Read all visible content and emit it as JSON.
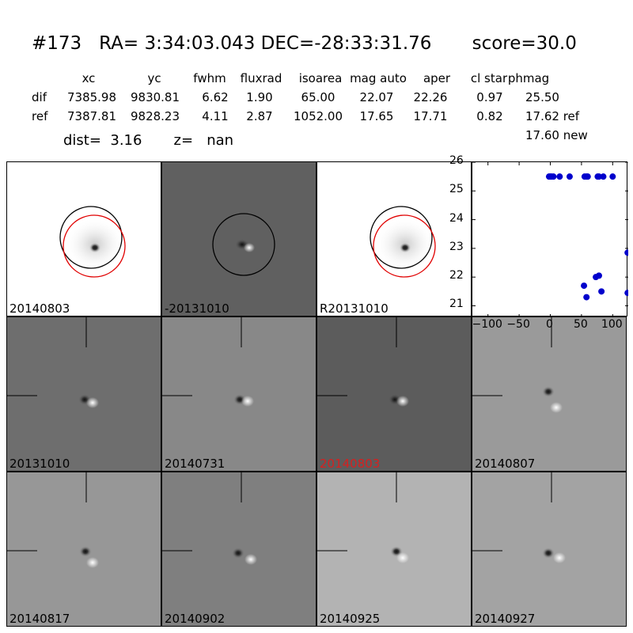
{
  "header": {
    "title": "#173   RA= 3:34:03.043 DEC=-28:33:31.76       score=30.0",
    "columns": [
      "xc",
      "yc",
      "fwhm",
      "fluxrad",
      "isoarea",
      "mag auto",
      "aper",
      "cl star",
      "phmag"
    ],
    "rows": [
      {
        "label": "dif",
        "values": [
          "7385.98",
          "9830.81",
          "6.62",
          "1.90",
          "65.00",
          "22.07",
          "22.26",
          "0.97",
          "25.50"
        ]
      },
      {
        "label": "ref",
        "values": [
          "7387.81",
          "9828.23",
          "4.11",
          "2.87",
          "1052.00",
          "17.65",
          "17.71",
          "0.82",
          "17.62 ref"
        ]
      }
    ],
    "phmag_new": "17.60 new",
    "dist_line": "dist=  3.16       z=   nan"
  },
  "stamps_top": [
    {
      "label": "20140803",
      "bg": "#ffffff",
      "label_color": "#000000"
    },
    {
      "label": "-20131010",
      "bg": "#606060",
      "label_color": "#000000"
    },
    {
      "label": "R20131010",
      "bg": "#ffffff",
      "label_color": "#000000"
    }
  ],
  "stamps_grid": [
    {
      "label": "20131010",
      "bg": "#6e6e6e",
      "label_color": "#000000"
    },
    {
      "label": "20140731",
      "bg": "#888888",
      "label_color": "#000000"
    },
    {
      "label": "20140803",
      "bg": "#5c5c5c",
      "label_color": "#d62020"
    },
    {
      "label": "20140807",
      "bg": "#9a9a9a",
      "label_color": "#000000"
    },
    {
      "label": "20140817",
      "bg": "#979797",
      "label_color": "#000000"
    },
    {
      "label": "20140902",
      "bg": "#7f7f7f",
      "label_color": "#000000"
    },
    {
      "label": "20140925",
      "bg": "#b3b3b3",
      "label_color": "#000000"
    },
    {
      "label": "20140927",
      "bg": "#a3a3a3",
      "label_color": "#000000"
    }
  ],
  "chart_data": {
    "type": "scatter",
    "x_ticks": [
      "−100",
      "−50",
      "0",
      "50",
      "100"
    ],
    "y_ticks": [
      "21",
      "22",
      "23",
      "24",
      "25",
      "26"
    ],
    "xlim": [
      -125,
      125
    ],
    "ylim": [
      26,
      20.6
    ],
    "points_color": "#0000cc",
    "points": [
      [
        -2,
        25.5
      ],
      [
        0,
        25.5
      ],
      [
        2,
        25.5
      ],
      [
        5,
        25.5
      ],
      [
        15,
        25.5
      ],
      [
        31,
        25.5
      ],
      [
        55,
        25.5
      ],
      [
        58,
        25.5
      ],
      [
        60,
        25.5
      ],
      [
        76,
        25.5
      ],
      [
        78,
        25.5
      ],
      [
        85,
        25.5
      ],
      [
        100,
        25.5
      ],
      [
        54,
        21.7
      ],
      [
        58,
        21.3
      ],
      [
        73,
        22.0
      ],
      [
        78,
        22.05
      ],
      [
        82,
        21.5
      ],
      [
        124,
        21.45
      ],
      [
        124,
        22.85
      ]
    ]
  }
}
